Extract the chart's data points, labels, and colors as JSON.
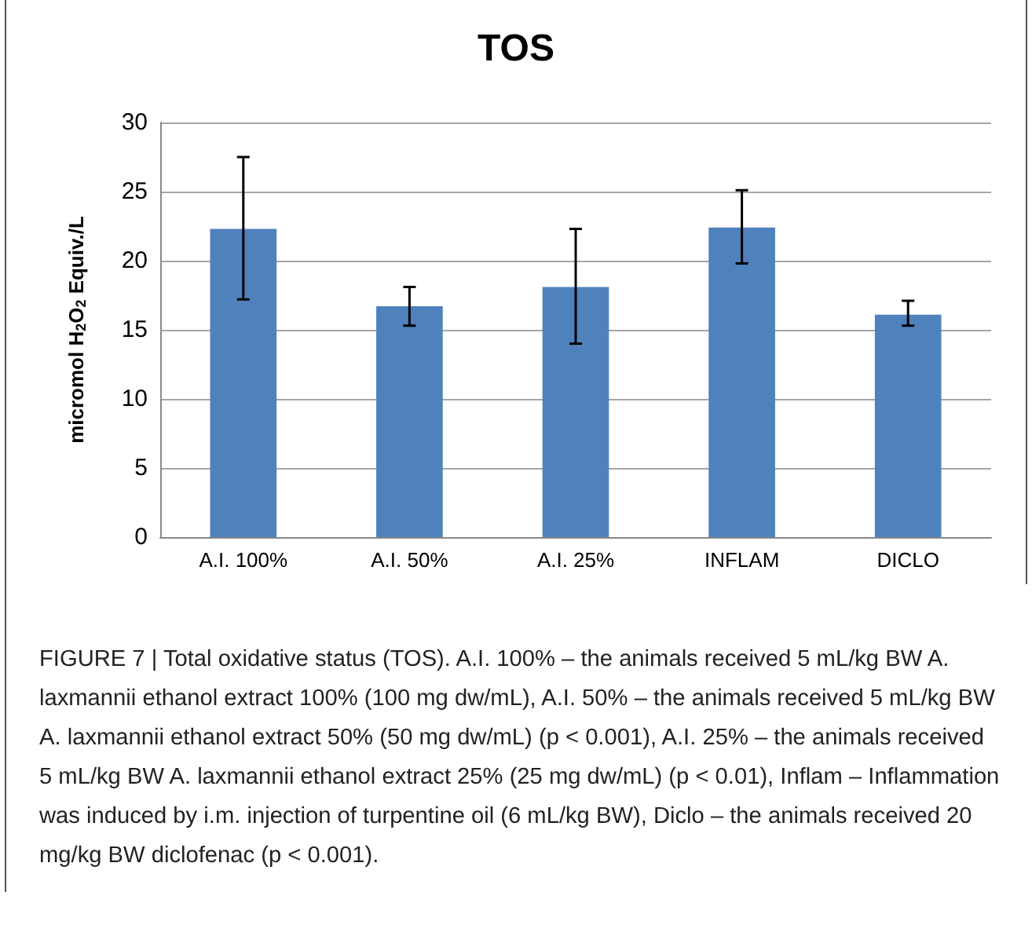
{
  "chart_data": {
    "type": "bar",
    "title": "TOS",
    "ylabel": "micromol H$_{2}$O$_{2}$ Equiv./L",
    "categories": [
      "A.I. 100%",
      "A.I. 50%",
      "A.I. 25%",
      "INFLAM",
      "DICLO"
    ],
    "values": [
      22.3,
      16.7,
      18.1,
      22.4,
      16.1
    ],
    "errors": [
      [
        17.2,
        27.5
      ],
      [
        15.3,
        18.1
      ],
      [
        14.0,
        22.3
      ],
      [
        19.8,
        25.1
      ],
      [
        15.3,
        17.1
      ]
    ],
    "color": "#4f81bd",
    "ylim": [
      0,
      30
    ],
    "yticks": [
      0,
      5,
      10,
      15,
      20,
      25,
      30
    ],
    "grid": "y",
    "annotations": [
      "FIGURE 7 | Total oxidative status (TOS). A.I. 100% – the animals received 5 mL/kg BW A. laxmannii ethanol extract 100% (100 mg dw/mL), A.I. 50% – the animals received 5 mL/kg BW A. laxmannii ethanol extract 50% (50 mg dw/mL) (p < 0.001), A.I. 25% – the animals received 5 mL/kg BW A. laxmannii ethanol extract 25% (25 mg dw/mL) (p < 0.01), Inflam – Inflammation was induced by i.m. injection of turpentine oil (6 mL/kg BW), Diclo – the animals received 20 mg/kg BW diclofenac (p < 0.001)."
    ]
  }
}
